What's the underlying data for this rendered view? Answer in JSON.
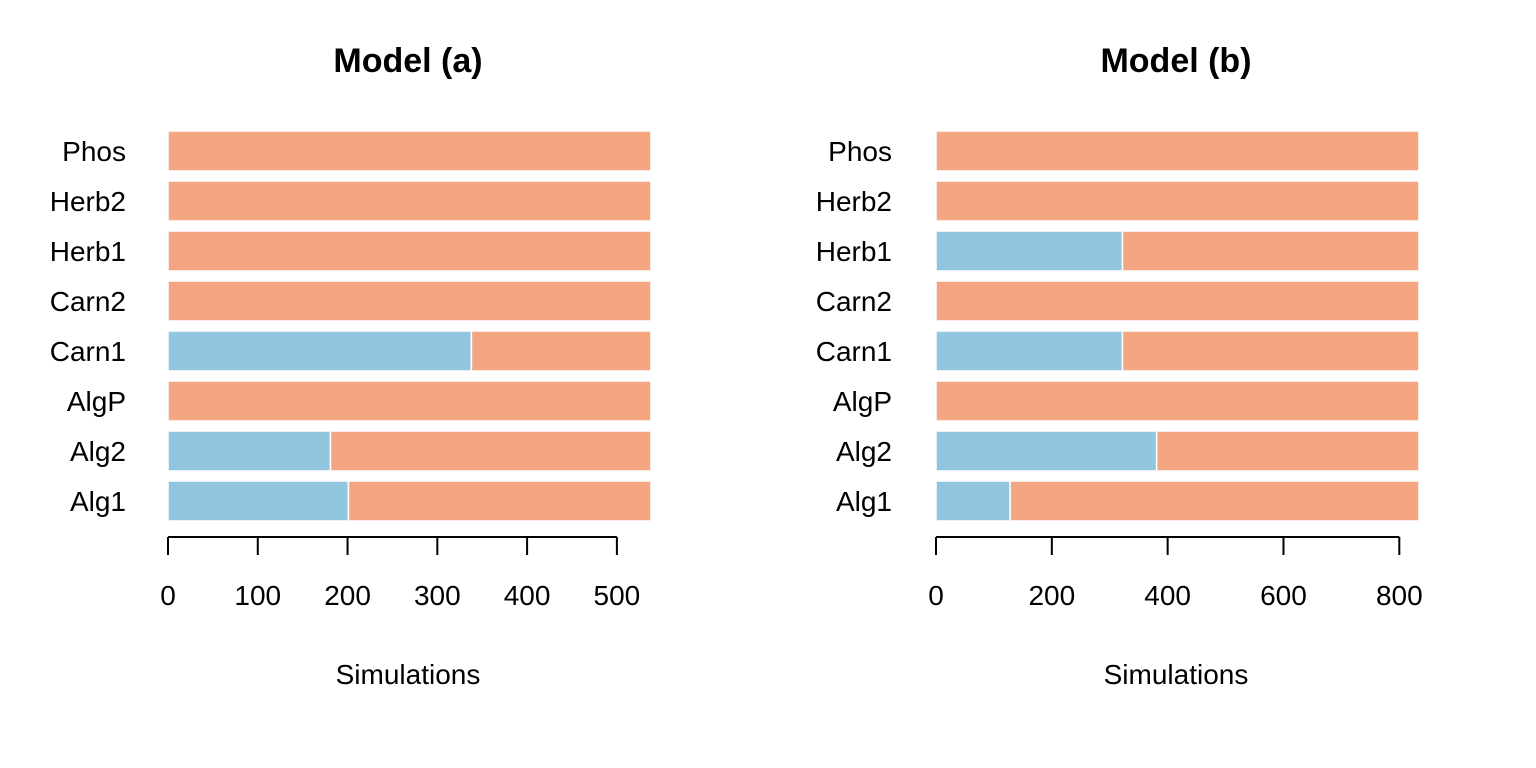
{
  "chart_data": [
    {
      "type": "bar",
      "orientation": "horizontal",
      "stacked": true,
      "title": "Model (a)",
      "xlabel": "Simulations",
      "ylabel": "",
      "categories": [
        "Alg1",
        "Alg2",
        "AlgP",
        "Carn1",
        "Carn2",
        "Herb1",
        "Herb2",
        "Phos"
      ],
      "series": [
        {
          "color": "#92c5de",
          "values": [
            201,
            181,
            0,
            338,
            0,
            0,
            0,
            0
          ]
        },
        {
          "color": "#f4a582",
          "values": [
            337,
            357,
            538,
            200,
            538,
            538,
            538,
            538
          ]
        }
      ],
      "xlim": [
        0,
        538
      ],
      "xticks": [
        0,
        100,
        200,
        300,
        400,
        500
      ],
      "grid": false,
      "legend": "none"
    },
    {
      "type": "bar",
      "orientation": "horizontal",
      "stacked": true,
      "title": "Model (b)",
      "xlabel": "Simulations",
      "ylabel": "",
      "categories": [
        "Alg1",
        "Alg2",
        "AlgP",
        "Carn1",
        "Carn2",
        "Herb1",
        "Herb2",
        "Phos"
      ],
      "series": [
        {
          "color": "#92c5de",
          "values": [
            128,
            381,
            0,
            322,
            0,
            322,
            0,
            0
          ]
        },
        {
          "color": "#f4a582",
          "values": [
            706,
            453,
            834,
            512,
            834,
            512,
            834,
            834
          ]
        }
      ],
      "xlim": [
        0,
        834
      ],
      "xticks": [
        0,
        200,
        400,
        600,
        800
      ],
      "grid": false,
      "legend": "none"
    }
  ]
}
